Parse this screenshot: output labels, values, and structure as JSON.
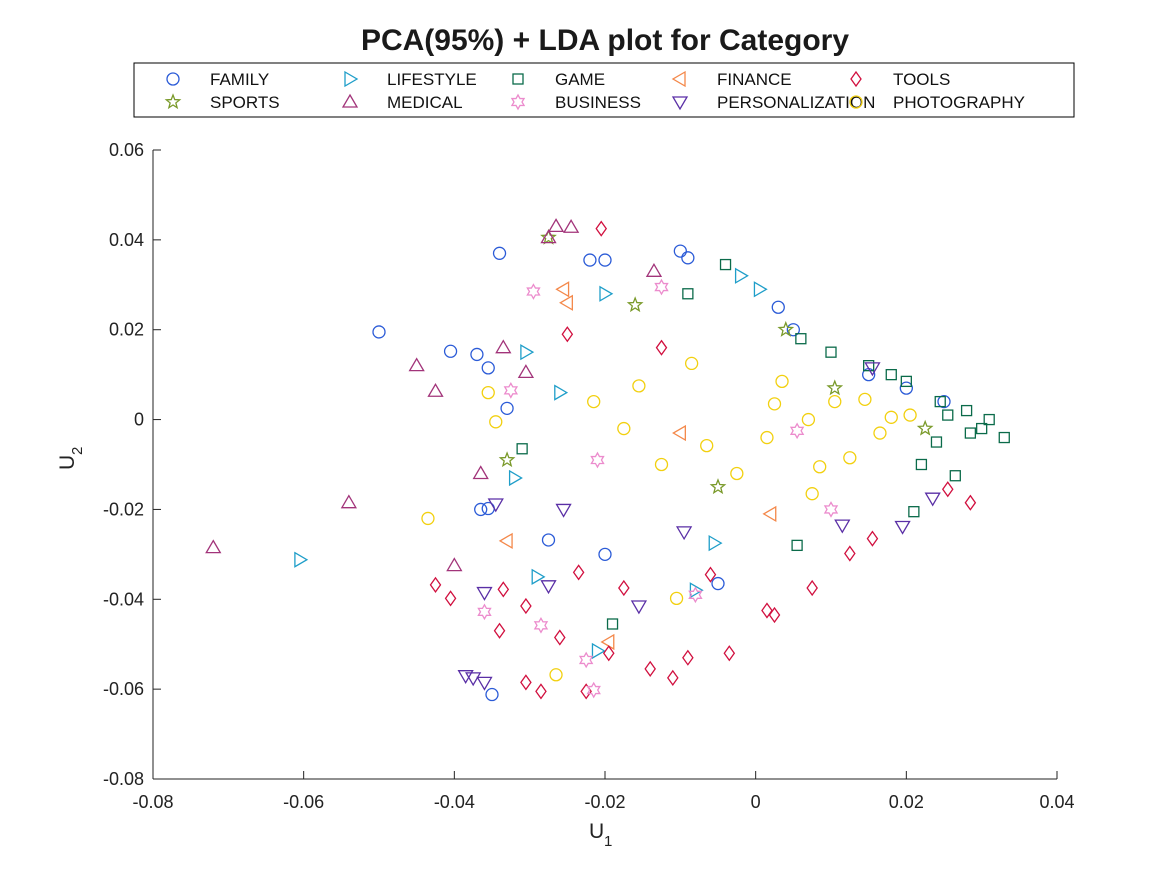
{
  "chart_data": {
    "type": "scatter",
    "title": "PCA(95%) + LDA plot for Category",
    "xlabel": {
      "main": "U",
      "sub": "1"
    },
    "ylabel": {
      "main": "U",
      "sub": "2"
    },
    "xlim": [
      -0.08,
      0.04
    ],
    "ylim": [
      -0.08,
      0.06
    ],
    "xticks": [
      -0.08,
      -0.06,
      -0.04,
      -0.02,
      0,
      0.02,
      0.04
    ],
    "xtick_labels": [
      "-0.08",
      "-0.06",
      "-0.04",
      "-0.02",
      "0",
      "0.02",
      "0.04"
    ],
    "yticks": [
      -0.08,
      -0.06,
      -0.04,
      -0.02,
      0,
      0.02,
      0.04,
      0.06
    ],
    "ytick_labels": [
      "-0.08",
      "-0.06",
      "-0.04",
      "-0.02",
      "0",
      "0.02",
      "0.04",
      "0.06"
    ],
    "grid": false,
    "legend_placement": "top",
    "series": [
      {
        "name": "FAMILY",
        "marker": "circle",
        "color": "#2b5bd7",
        "points": [
          [
            -0.05,
            0.0195
          ],
          [
            -0.034,
            0.037
          ],
          [
            -0.0405,
            0.0152
          ],
          [
            -0.037,
            0.0145
          ],
          [
            -0.0355,
            0.0115
          ],
          [
            -0.033,
            0.0025
          ],
          [
            -0.0355,
            -0.0198
          ],
          [
            -0.0365,
            -0.02
          ],
          [
            -0.035,
            -0.0612
          ],
          [
            -0.0275,
            -0.0268
          ],
          [
            -0.02,
            0.0355
          ],
          [
            -0.022,
            0.0355
          ],
          [
            -0.01,
            0.0375
          ],
          [
            -0.009,
            0.036
          ],
          [
            0.003,
            0.025
          ],
          [
            -0.005,
            -0.0365
          ],
          [
            -0.02,
            -0.03
          ],
          [
            0.005,
            0.02
          ],
          [
            0.015,
            0.01
          ],
          [
            0.02,
            0.007
          ],
          [
            0.025,
            0.004
          ]
        ]
      },
      {
        "name": "LIFESTYLE",
        "marker": "triangle-right",
        "color": "#1f9ec9",
        "points": [
          [
            -0.0605,
            -0.0312
          ],
          [
            -0.0305,
            0.015
          ],
          [
            -0.029,
            -0.035
          ],
          [
            -0.02,
            0.028
          ],
          [
            -0.021,
            -0.0515
          ],
          [
            -0.008,
            -0.038
          ],
          [
            -0.0055,
            -0.0275
          ],
          [
            -0.002,
            0.032
          ],
          [
            0.0005,
            0.029
          ],
          [
            -0.032,
            -0.013
          ],
          [
            -0.026,
            0.006
          ]
        ]
      },
      {
        "name": "GAME",
        "marker": "square",
        "color": "#0b6b4a",
        "points": [
          [
            0.033,
            -0.004
          ],
          [
            0.031,
            0.0
          ],
          [
            0.0285,
            -0.003
          ],
          [
            0.0265,
            -0.0125
          ],
          [
            0.0255,
            0.001
          ],
          [
            0.0245,
            0.004
          ],
          [
            0.02,
            0.0085
          ],
          [
            0.015,
            0.012
          ],
          [
            0.021,
            -0.0205
          ],
          [
            0.0055,
            -0.028
          ],
          [
            -0.004,
            0.0345
          ],
          [
            -0.019,
            -0.0455
          ],
          [
            -0.031,
            -0.0065
          ],
          [
            -0.009,
            0.028
          ],
          [
            0.006,
            0.018
          ],
          [
            0.01,
            0.015
          ],
          [
            0.022,
            -0.01
          ],
          [
            0.018,
            0.01
          ],
          [
            0.028,
            0.002
          ],
          [
            0.03,
            -0.002
          ],
          [
            0.024,
            -0.005
          ]
        ]
      },
      {
        "name": "FINANCE",
        "marker": "triangle-left",
        "color": "#f4884a",
        "points": [
          [
            -0.0255,
            0.029
          ],
          [
            -0.0195,
            -0.0495
          ],
          [
            -0.033,
            -0.027
          ],
          [
            -0.025,
            0.026
          ],
          [
            -0.01,
            -0.003
          ],
          [
            0.002,
            -0.021
          ]
        ]
      },
      {
        "name": "TOOLS",
        "marker": "diamond",
        "color": "#d1103f",
        "points": [
          [
            -0.0205,
            0.0425
          ],
          [
            -0.0425,
            -0.0368
          ],
          [
            -0.0405,
            -0.0398
          ],
          [
            -0.034,
            -0.047
          ],
          [
            -0.0305,
            -0.0585
          ],
          [
            -0.0285,
            -0.0605
          ],
          [
            -0.026,
            -0.0485
          ],
          [
            -0.0225,
            -0.0605
          ],
          [
            -0.0195,
            -0.052
          ],
          [
            -0.014,
            -0.0555
          ],
          [
            -0.011,
            -0.0575
          ],
          [
            -0.009,
            -0.053
          ],
          [
            -0.0035,
            -0.052
          ],
          [
            0.0015,
            -0.0425
          ],
          [
            0.0025,
            -0.0435
          ],
          [
            -0.0335,
            -0.0378
          ],
          [
            0.0255,
            -0.0155
          ],
          [
            0.0285,
            -0.0185
          ],
          [
            0.0155,
            -0.0265
          ],
          [
            0.0125,
            -0.0298
          ],
          [
            0.0075,
            -0.0375
          ],
          [
            -0.0235,
            -0.034
          ],
          [
            -0.0175,
            -0.0375
          ],
          [
            -0.025,
            0.019
          ],
          [
            -0.0125,
            0.016
          ],
          [
            -0.0305,
            -0.0415
          ],
          [
            -0.006,
            -0.0345
          ]
        ]
      },
      {
        "name": "SPORTS",
        "marker": "star",
        "color": "#7a9a2a",
        "points": [
          [
            -0.0275,
            0.0405
          ],
          [
            -0.033,
            -0.009
          ],
          [
            -0.016,
            0.0255
          ],
          [
            0.004,
            0.02
          ],
          [
            0.0105,
            0.007
          ],
          [
            0.0225,
            -0.002
          ],
          [
            -0.005,
            -0.015
          ]
        ]
      },
      {
        "name": "MEDICAL",
        "marker": "triangle-up",
        "color": "#a2347a",
        "points": [
          [
            -0.072,
            -0.0285
          ],
          [
            -0.054,
            -0.0185
          ],
          [
            -0.045,
            0.012
          ],
          [
            -0.0425,
            0.0063
          ],
          [
            -0.0265,
            0.043
          ],
          [
            -0.0275,
            0.0405
          ],
          [
            -0.0335,
            0.016
          ],
          [
            -0.04,
            -0.0325
          ],
          [
            -0.0245,
            0.0428
          ],
          [
            -0.0135,
            0.033
          ],
          [
            -0.0305,
            0.0105
          ],
          [
            -0.0365,
            -0.012
          ]
        ]
      },
      {
        "name": "BUSINESS",
        "marker": "hexagram",
        "color": "#ec8ccd",
        "points": [
          [
            -0.0295,
            0.0285
          ],
          [
            -0.036,
            -0.0428
          ],
          [
            -0.0285,
            -0.0458
          ],
          [
            -0.0225,
            -0.0535
          ],
          [
            -0.0215,
            -0.0602
          ],
          [
            -0.0325,
            0.0065
          ],
          [
            -0.021,
            -0.009
          ],
          [
            0.0055,
            -0.0025
          ],
          [
            -0.0125,
            0.0295
          ],
          [
            -0.008,
            -0.039
          ],
          [
            0.01,
            -0.02
          ]
        ]
      },
      {
        "name": "PERSONALIZATION",
        "marker": "triangle-down",
        "color": "#5a2fa6",
        "points": [
          [
            -0.0385,
            -0.057
          ],
          [
            -0.0375,
            -0.0575
          ],
          [
            -0.036,
            -0.0585
          ],
          [
            -0.036,
            -0.0385
          ],
          [
            -0.0345,
            -0.0188
          ],
          [
            -0.0275,
            -0.037
          ],
          [
            -0.0155,
            -0.0415
          ],
          [
            0.0195,
            -0.0238
          ],
          [
            0.0235,
            -0.0175
          ],
          [
            0.0115,
            -0.0235
          ],
          [
            0.0155,
            0.0115
          ],
          [
            -0.0095,
            -0.025
          ],
          [
            -0.0255,
            -0.02
          ]
        ]
      },
      {
        "name": "PHOTOGRAPHY",
        "marker": "circle",
        "color": "#f2d00f",
        "points": [
          [
            -0.0435,
            -0.022
          ],
          [
            -0.0265,
            -0.0568
          ],
          [
            -0.0355,
            0.006
          ],
          [
            -0.0345,
            -0.0005
          ],
          [
            -0.0105,
            -0.0398
          ],
          [
            -0.0065,
            -0.0058
          ],
          [
            0.0015,
            -0.004
          ],
          [
            0.007,
            0.0
          ],
          [
            0.0105,
            0.004
          ],
          [
            0.0145,
            0.0045
          ],
          [
            0.018,
            0.0005
          ],
          [
            0.0125,
            -0.0085
          ],
          [
            0.0075,
            -0.0165
          ],
          [
            -0.0025,
            -0.012
          ],
          [
            -0.0125,
            -0.01
          ],
          [
            -0.0175,
            -0.002
          ],
          [
            -0.0155,
            0.0075
          ],
          [
            -0.0085,
            0.0125
          ],
          [
            0.0035,
            0.0085
          ],
          [
            0.0165,
            -0.003
          ],
          [
            0.0205,
            0.001
          ],
          [
            0.0025,
            0.0035
          ],
          [
            -0.0215,
            0.004
          ],
          [
            0.0085,
            -0.0105
          ]
        ]
      }
    ]
  }
}
